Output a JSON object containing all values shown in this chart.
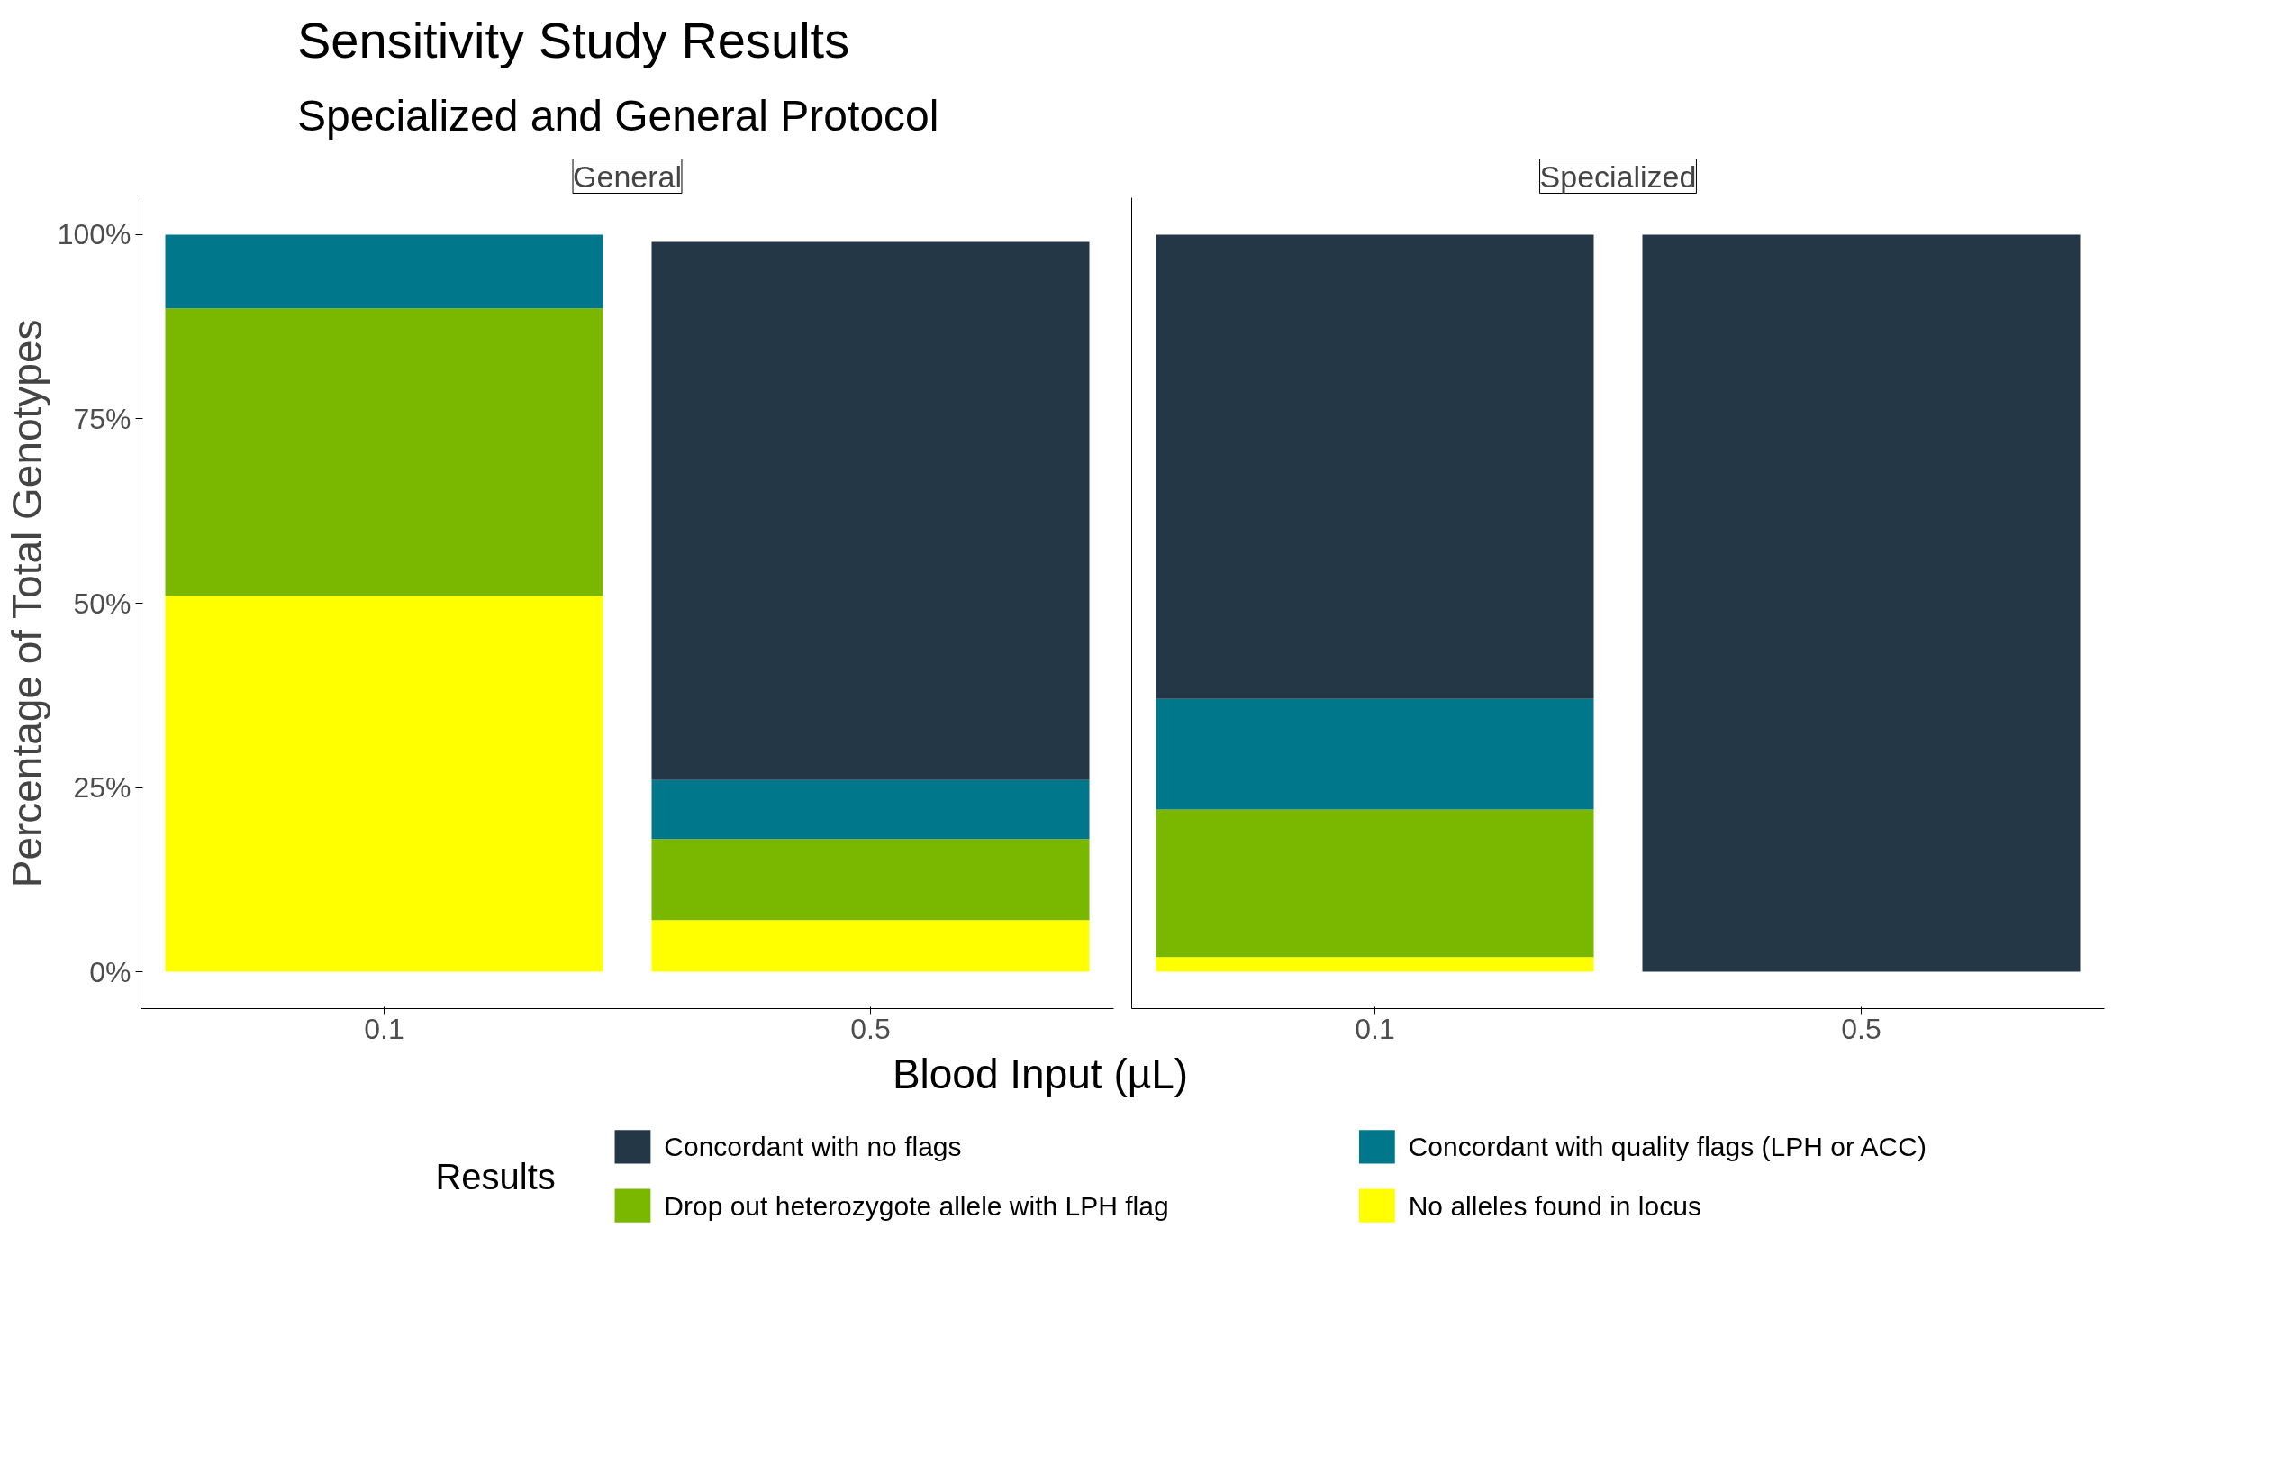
{
  "chart_data": [
    {
      "type": "bar",
      "title": "Sensitivity Study Results",
      "subtitle": "Specialized and General Protocol",
      "annotations": [
        "General"
      ],
      "xlabel": "Blood Input (µL)",
      "ylabel": "Percentage of Total Genotypes",
      "legend_title": "Results",
      "categories": [
        "0.1",
        "0.5"
      ],
      "stacked": true,
      "ylim": [
        -5,
        105
      ],
      "yticks": [
        {
          "value": 0,
          "label": "0%"
        },
        {
          "value": 25,
          "label": "25%"
        },
        {
          "value": 50,
          "label": "50%"
        },
        {
          "value": 75,
          "label": "75%"
        },
        {
          "value": 100,
          "label": "100%"
        }
      ],
      "grid": false,
      "legend": "bottom",
      "series": [
        {
          "name": "No alleles found in locus",
          "color": "#ffff00",
          "values": [
            51,
            7
          ]
        },
        {
          "name": "Drop out heterozygote allele with LPH flag",
          "color": "#7ab800",
          "values": [
            39,
            11
          ]
        },
        {
          "name": "Concordant with quality flags (LPH or ACC)",
          "color": "#00778b",
          "values": [
            10,
            8
          ]
        },
        {
          "name": "Concordant with no flags",
          "color": "#243746",
          "values": [
            0,
            73
          ]
        }
      ]
    },
    {
      "type": "bar",
      "annotations": [
        "Specialized"
      ],
      "categories": [
        "0.1",
        "0.5"
      ],
      "stacked": true,
      "ylim": [
        -5,
        105
      ],
      "grid": false,
      "tick_labels": "x",
      "series": [
        {
          "color": "#ffff00",
          "values": [
            2,
            0
          ]
        },
        {
          "color": "#7ab800",
          "values": [
            20,
            0
          ]
        },
        {
          "color": "#00778b",
          "values": [
            15,
            0
          ]
        },
        {
          "color": "#243746",
          "values": [
            63,
            100
          ]
        }
      ]
    }
  ]
}
